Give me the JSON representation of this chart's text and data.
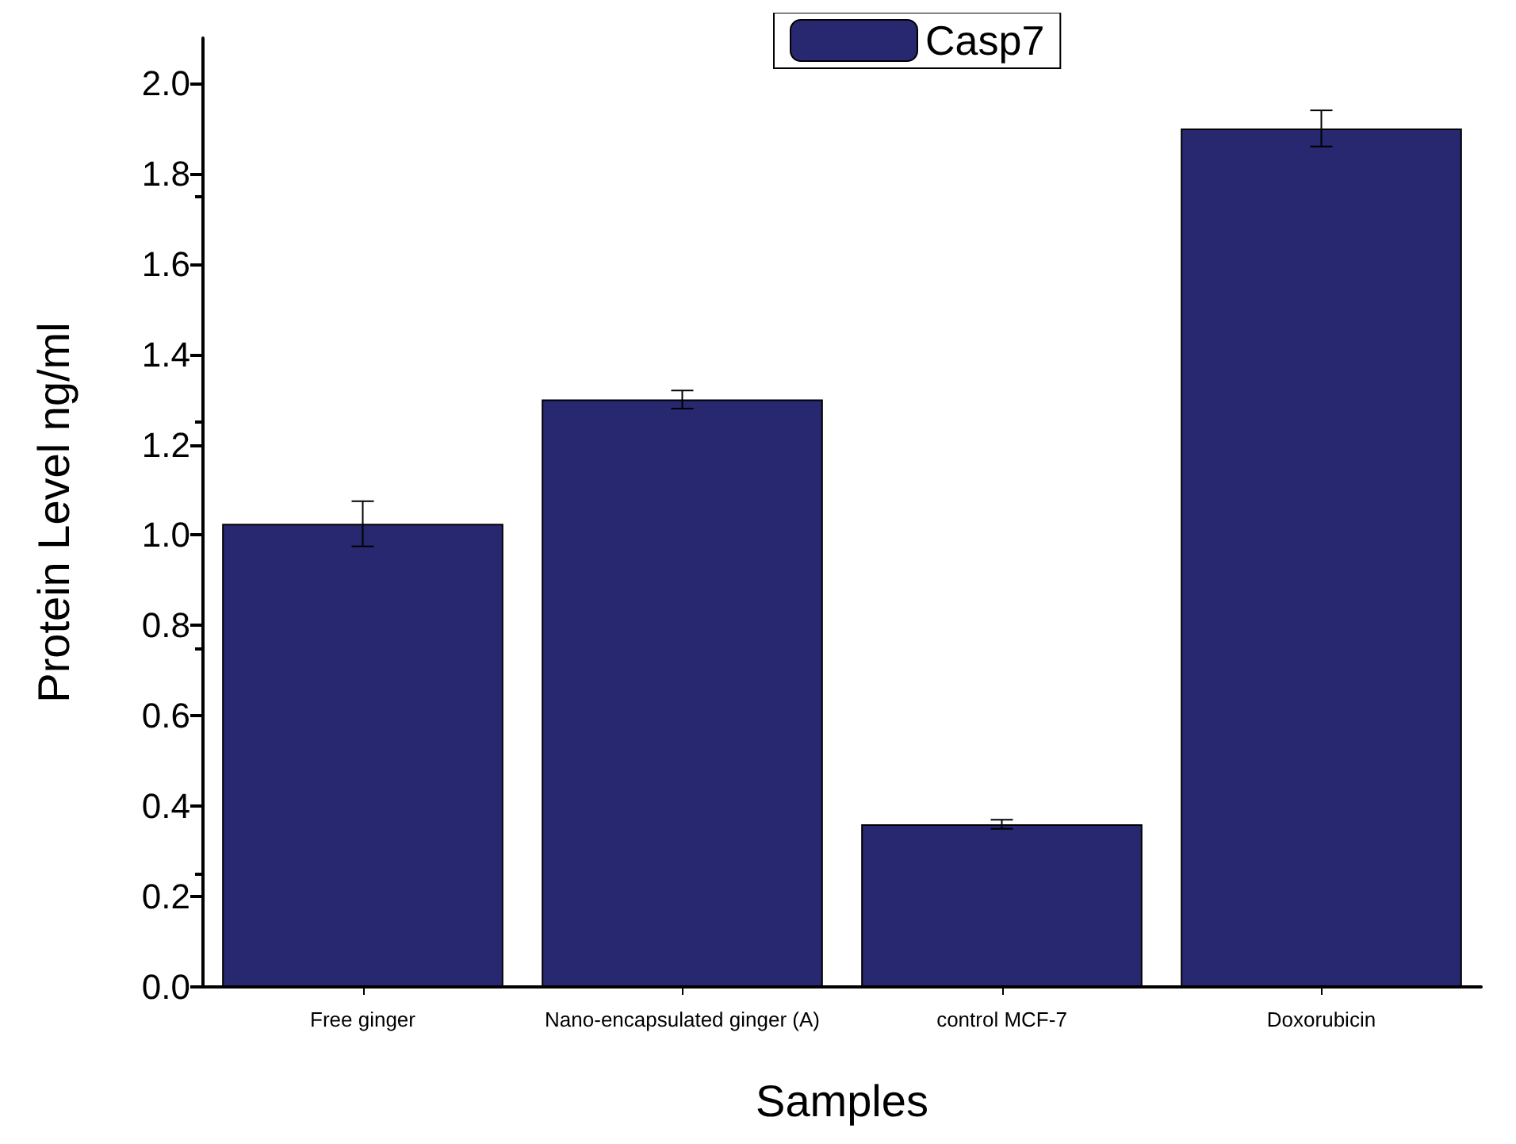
{
  "chart_data": {
    "type": "bar",
    "xlabel": "Samples",
    "ylabel": "Protein Level ng/ml",
    "categories": [
      "Free ginger",
      "Nano-encapsulated ginger (A)",
      "control MCF-7",
      "Doxorubicin"
    ],
    "series": [
      {
        "name": "Casp7",
        "color": "#27286f",
        "values": [
          1.025,
          1.3,
          0.36,
          1.9
        ],
        "errors": [
          0.05,
          0.02,
          0.01,
          0.04
        ]
      }
    ],
    "ylim": [
      0,
      2.1
    ],
    "yticks": [
      {
        "value": 0,
        "label": "0.0"
      },
      0.2,
      0.4,
      0.6,
      0.8,
      {
        "value": 1,
        "label": "1.0"
      },
      1.2,
      1.4,
      1.6,
      1.8,
      {
        "value": 2,
        "label": "2.0"
      }
    ],
    "legend": "top",
    "grid": false
  }
}
